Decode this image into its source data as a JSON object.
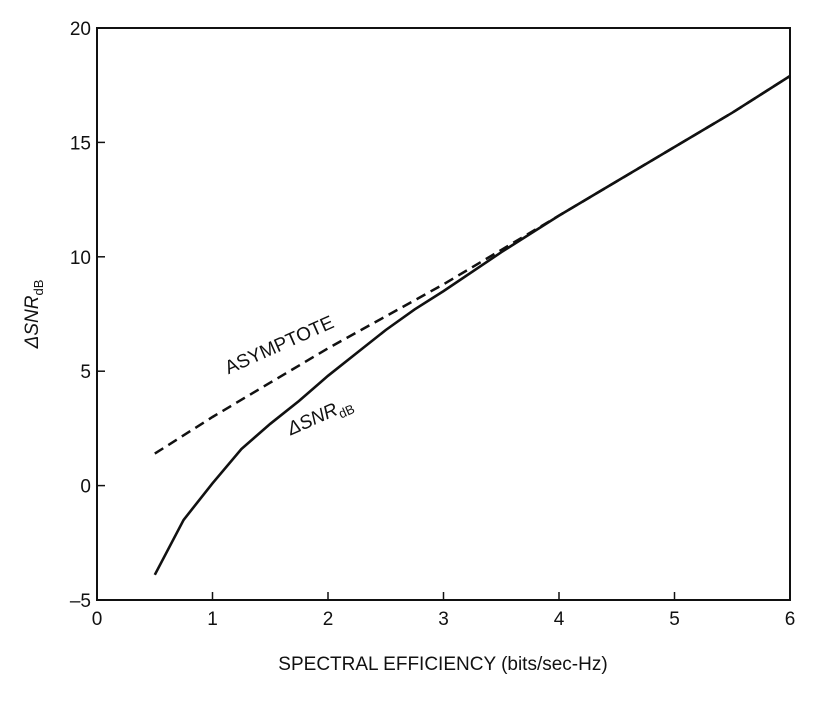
{
  "chart_data": {
    "type": "line",
    "title": "",
    "xlabel": "SPECTRAL EFFICIENCY (bits/sec-Hz)",
    "ylabel": {
      "main": "ΔSNR",
      "sub": "dB"
    },
    "xlim": [
      0,
      6
    ],
    "ylim": [
      -5,
      20
    ],
    "xticks": [
      0,
      1,
      2,
      3,
      4,
      5,
      6
    ],
    "yticks": [
      -5,
      0,
      5,
      10,
      15,
      20
    ],
    "xtick_labels": [
      "0",
      "1",
      "2",
      "3",
      "4",
      "5",
      "6"
    ],
    "ytick_labels": [
      "–5",
      "0",
      "5",
      "10",
      "15",
      "20"
    ],
    "grid": false,
    "legend": "none",
    "series": [
      {
        "style": "dashed",
        "color": "#111111",
        "x": [
          0.5,
          1.0,
          1.5,
          2.0,
          2.5,
          3.0,
          3.5,
          4.0,
          4.5,
          5.0,
          5.5,
          6.0
        ],
        "y": [
          1.4,
          3.0,
          4.5,
          6.0,
          7.4,
          8.8,
          10.3,
          11.8,
          13.3,
          14.8,
          16.3,
          17.9
        ]
      },
      {
        "style": "solid",
        "color": "#111111",
        "x": [
          0.5,
          0.75,
          1.0,
          1.25,
          1.5,
          1.75,
          2.0,
          2.25,
          2.5,
          2.75,
          3.0,
          3.5,
          4.0,
          4.5,
          5.0,
          5.5,
          6.0
        ],
        "y": [
          -3.9,
          -1.5,
          0.1,
          1.6,
          2.7,
          3.7,
          4.8,
          5.8,
          6.8,
          7.7,
          8.5,
          10.2,
          11.8,
          13.3,
          14.8,
          16.3,
          17.9
        ]
      }
    ],
    "annotations": [
      {
        "text": "ASYMPTOTE",
        "x": 1.6,
        "y": 5.9,
        "angle": -24
      },
      {
        "main": "ΔSNR",
        "sub": "dB",
        "x": 1.95,
        "y": 2.8,
        "angle": -24
      }
    ]
  }
}
